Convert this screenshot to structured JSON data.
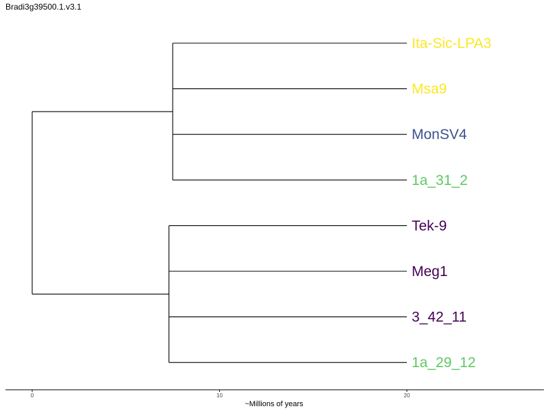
{
  "title": "Bradi3g39500.1.v3.1",
  "axis": {
    "label": "~Millions of years",
    "ticks": [
      0,
      10,
      20
    ],
    "range": [
      -1.4,
      27.3
    ]
  },
  "colors": {
    "yellow": "#FDE725",
    "blue": "#3B528B",
    "green": "#5DC863",
    "purple": "#440154"
  },
  "tree": {
    "x": 0,
    "children": [
      {
        "x": 7.5,
        "children": [
          {
            "name": "Ita-Sic-LPA3",
            "color": "#FDE725"
          },
          {
            "name": "Msa9",
            "color": "#FDE725"
          },
          {
            "name": "MonSV4",
            "color": "#3B528B"
          },
          {
            "name": "1a_31_2",
            "color": "#5DC863"
          }
        ]
      },
      {
        "x": 7.3,
        "children": [
          {
            "name": "Tek-9",
            "color": "#440154"
          },
          {
            "name": "Meg1",
            "color": "#440154"
          },
          {
            "name": "3_42_11",
            "color": "#440154"
          },
          {
            "name": "1a_29_12",
            "color": "#5DC863"
          }
        ]
      }
    ],
    "leaf_x": 20
  }
}
